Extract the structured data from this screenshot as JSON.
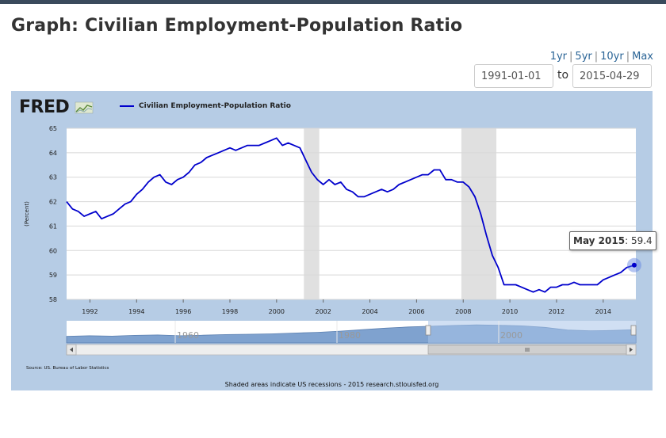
{
  "page": {
    "title": "Graph: Civilian Employment-Population Ratio"
  },
  "range": {
    "links": [
      "1yr",
      "5yr",
      "10yr",
      "Max"
    ],
    "start": "1991-01-01",
    "to_label": "to",
    "end": "2015-04-29"
  },
  "chart_data": {
    "type": "line",
    "logo": "FRED",
    "title": "Civilian Employment-Population Ratio",
    "ylabel": "(Percent)",
    "xlabel": "",
    "ylim": [
      58,
      65
    ],
    "xlim": [
      1991.0,
      2015.4
    ],
    "y_ticks": [
      "58",
      "59",
      "60",
      "61",
      "62",
      "63",
      "64",
      "65"
    ],
    "x_ticks": [
      "1992",
      "1994",
      "1996",
      "1998",
      "2000",
      "2002",
      "2004",
      "2006",
      "2008",
      "2010",
      "2012",
      "2014"
    ],
    "recessions": [
      [
        2001.17,
        2001.83
      ],
      [
        2007.92,
        2009.42
      ]
    ],
    "series": [
      {
        "name": "Civilian Employment-Population Ratio",
        "color": "#0000cc",
        "x": [
          1991.0,
          1991.25,
          1991.5,
          1991.75,
          1992.0,
          1992.25,
          1992.5,
          1992.75,
          1993.0,
          1993.25,
          1993.5,
          1993.75,
          1994.0,
          1994.25,
          1994.5,
          1994.75,
          1995.0,
          1995.25,
          1995.5,
          1995.75,
          1996.0,
          1996.25,
          1996.5,
          1996.75,
          1997.0,
          1997.25,
          1997.5,
          1997.75,
          1998.0,
          1998.25,
          1998.5,
          1998.75,
          1999.0,
          1999.25,
          1999.5,
          1999.75,
          2000.0,
          2000.25,
          2000.5,
          2000.75,
          2001.0,
          2001.25,
          2001.5,
          2001.75,
          2002.0,
          2002.25,
          2002.5,
          2002.75,
          2003.0,
          2003.25,
          2003.5,
          2003.75,
          2004.0,
          2004.25,
          2004.5,
          2004.75,
          2005.0,
          2005.25,
          2005.5,
          2005.75,
          2006.0,
          2006.25,
          2006.5,
          2006.75,
          2007.0,
          2007.25,
          2007.5,
          2007.75,
          2008.0,
          2008.25,
          2008.5,
          2008.75,
          2009.0,
          2009.25,
          2009.5,
          2009.75,
          2010.0,
          2010.25,
          2010.5,
          2010.75,
          2011.0,
          2011.25,
          2011.5,
          2011.75,
          2012.0,
          2012.25,
          2012.5,
          2012.75,
          2013.0,
          2013.25,
          2013.5,
          2013.75,
          2014.0,
          2014.25,
          2014.5,
          2014.75,
          2015.0,
          2015.33
        ],
        "values": [
          62.0,
          61.7,
          61.6,
          61.4,
          61.5,
          61.6,
          61.3,
          61.4,
          61.5,
          61.7,
          61.9,
          62.0,
          62.3,
          62.5,
          62.8,
          63.0,
          63.1,
          62.8,
          62.7,
          62.9,
          63.0,
          63.2,
          63.5,
          63.6,
          63.8,
          63.9,
          64.0,
          64.1,
          64.2,
          64.1,
          64.2,
          64.3,
          64.3,
          64.3,
          64.4,
          64.5,
          64.6,
          64.3,
          64.4,
          64.3,
          64.2,
          63.7,
          63.2,
          62.9,
          62.7,
          62.9,
          62.7,
          62.8,
          62.5,
          62.4,
          62.2,
          62.2,
          62.3,
          62.4,
          62.5,
          62.4,
          62.5,
          62.7,
          62.8,
          62.9,
          63.0,
          63.1,
          63.1,
          63.3,
          63.3,
          62.9,
          62.9,
          62.8,
          62.8,
          62.6,
          62.2,
          61.5,
          60.6,
          59.8,
          59.3,
          58.6,
          58.6,
          58.6,
          58.5,
          58.4,
          58.3,
          58.4,
          58.3,
          58.5,
          58.5,
          58.6,
          58.6,
          58.7,
          58.6,
          58.6,
          58.6,
          58.6,
          58.8,
          58.9,
          59.0,
          59.1,
          59.3,
          59.4
        ]
      }
    ],
    "navigator": {
      "labels": [
        "1960",
        "1980",
        "2000"
      ]
    },
    "tooltip": {
      "label": "May 2015",
      "value": "59.4"
    },
    "source": "Source: US. Bureau of Labor Statistics",
    "note": "Shaded areas indicate US recessions - 2015 research.stlouisfed.org"
  }
}
